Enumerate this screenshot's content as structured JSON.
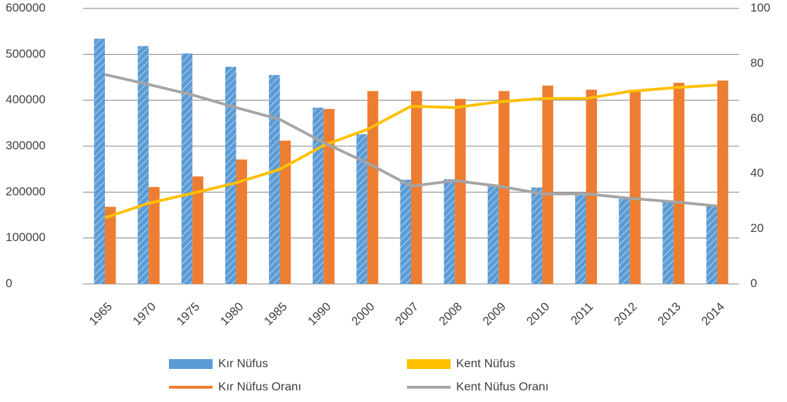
{
  "chart_data": {
    "type": "bar",
    "categories": [
      "1965",
      "1970",
      "1975",
      "1980",
      "1985",
      "1990",
      "2000",
      "2007",
      "2008",
      "2009",
      "2010",
      "2011",
      "2012",
      "2013",
      "2014"
    ],
    "series": [
      {
        "name": "Kır Nüfus",
        "type": "bar",
        "color": "#5b9bd5",
        "legend_color": "#5b9bd5",
        "hatched": true,
        "values": [
          534000,
          518000,
          502000,
          473000,
          455000,
          384000,
          326000,
          227000,
          228000,
          214000,
          210000,
          193000,
          185000,
          179000,
          172000
        ]
      },
      {
        "name": "Kent Nüfus",
        "type": "bar",
        "color": "#ed7d31",
        "legend_color": "#ffc000",
        "hatched": false,
        "values": [
          168000,
          211000,
          234000,
          271000,
          312000,
          381000,
          420000,
          420000,
          403000,
          420000,
          432000,
          423000,
          423000,
          438000,
          443000
        ]
      },
      {
        "name": "Kır Nüfus Oranı",
        "type": "line",
        "axis": "y2",
        "color": "#ffc000",
        "legend_color": "#ed7d31",
        "values": [
          24,
          29.3,
          32.9,
          36.7,
          41.6,
          50.3,
          56.1,
          64.5,
          64,
          66.1,
          67.3,
          67.3,
          69.9,
          71.2,
          72.2
        ]
      },
      {
        "name": "Kent Nüfus Oranı",
        "type": "line",
        "axis": "y2",
        "color": "#a5a5a5",
        "legend_color": "#a5a5a5",
        "values": [
          76,
          72.4,
          68.6,
          64,
          59.7,
          51.3,
          43.9,
          35.5,
          37.5,
          35.5,
          32.7,
          32.7,
          31.1,
          29.8,
          28.3
        ]
      }
    ],
    "ylim": [
      0,
      600000
    ],
    "yticks": [
      0,
      100000,
      200000,
      300000,
      400000,
      500000,
      600000
    ],
    "y2lim": [
      0,
      100
    ],
    "y2ticks": [
      0,
      20,
      40,
      60,
      80,
      100
    ],
    "grid": true,
    "legend": "bottom"
  }
}
